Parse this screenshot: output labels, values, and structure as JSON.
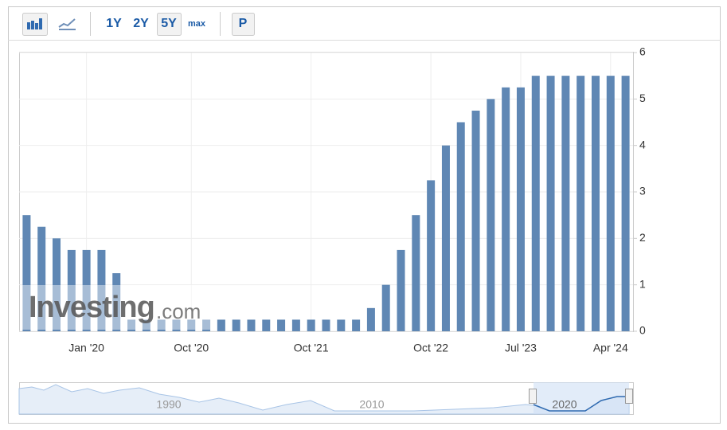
{
  "toolbar": {
    "buttons": [
      "1Y",
      "2Y",
      "5Y",
      "max",
      "P"
    ]
  },
  "chart_data": {
    "type": "bar",
    "categories": [
      null,
      null,
      null,
      null,
      "Jan '20",
      null,
      null,
      null,
      null,
      null,
      null,
      "Oct '20",
      null,
      null,
      null,
      null,
      null,
      null,
      null,
      "Oct '21",
      null,
      null,
      null,
      null,
      null,
      null,
      null,
      "Oct '22",
      null,
      null,
      null,
      null,
      null,
      "Jul '23",
      null,
      null,
      null,
      null,
      null,
      "Apr '24",
      null
    ],
    "values": [
      2.5,
      2.25,
      2.0,
      1.75,
      1.75,
      1.75,
      1.25,
      0.25,
      0.25,
      0.25,
      0.25,
      0.25,
      0.25,
      0.25,
      0.25,
      0.25,
      0.25,
      0.25,
      0.25,
      0.25,
      0.25,
      0.25,
      0.25,
      0.5,
      1.0,
      1.75,
      2.5,
      3.25,
      4.0,
      4.5,
      4.75,
      5.0,
      5.25,
      5.25,
      5.5,
      5.5,
      5.5,
      5.5,
      5.5,
      5.5,
      5.5
    ],
    "color": "#5f87b4",
    "ylim": [
      0,
      6
    ],
    "yticks": [
      0,
      1,
      2,
      3,
      4,
      5,
      6
    ],
    "grid": true,
    "watermark": [
      "Investing",
      ".com"
    ]
  },
  "navigator": {
    "labels": [
      "1990",
      "2010",
      "2020"
    ]
  }
}
